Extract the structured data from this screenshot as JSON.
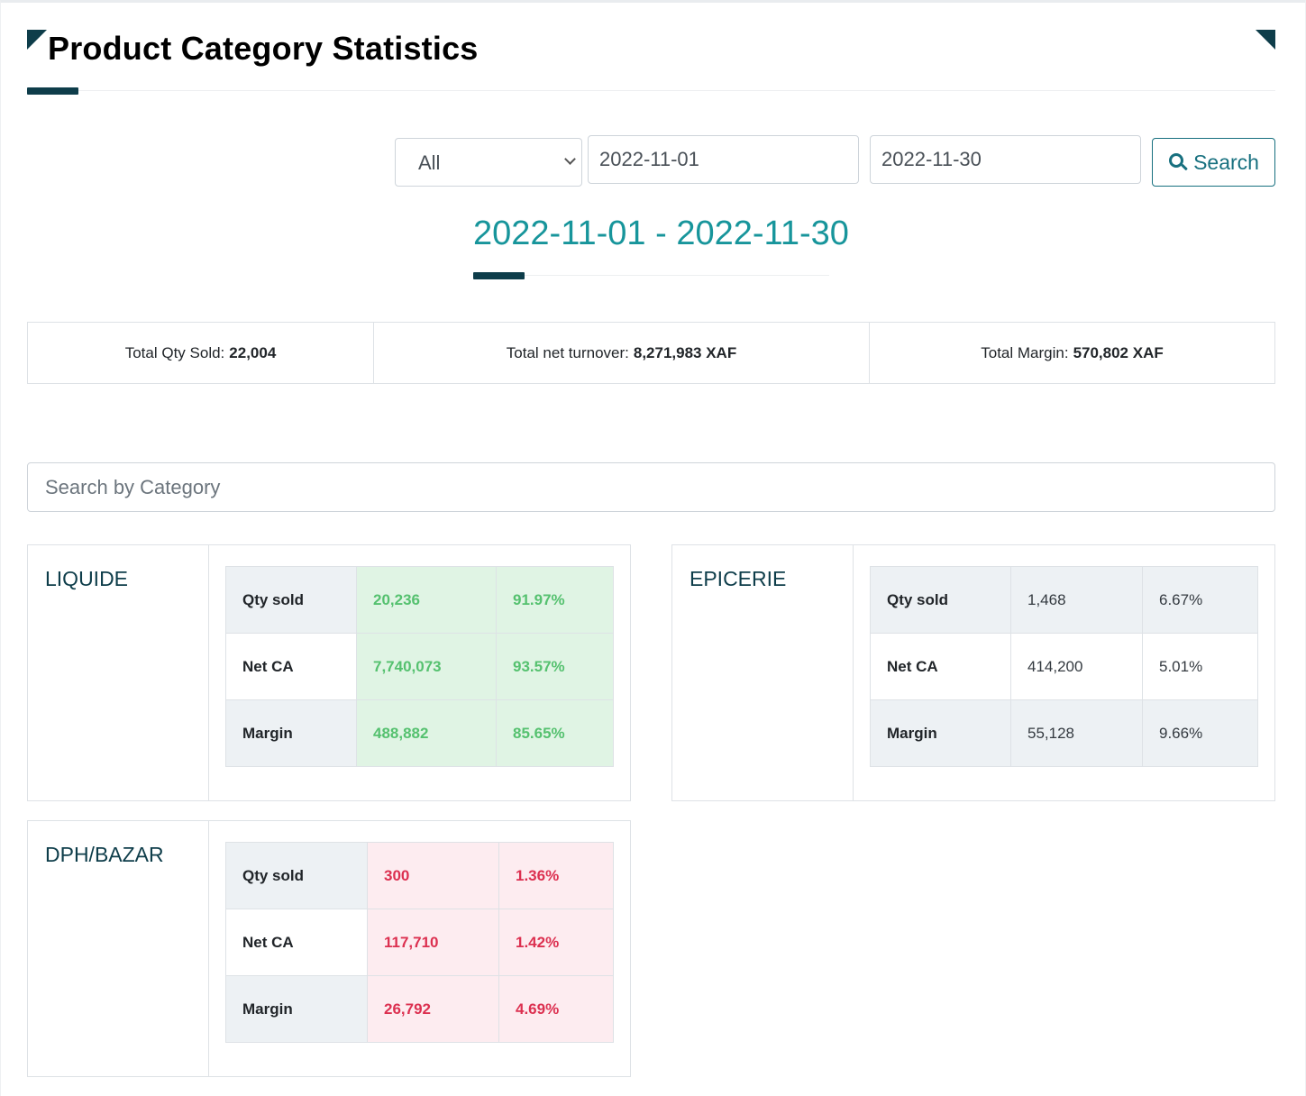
{
  "header": {
    "title": "Product Category Statistics"
  },
  "filters": {
    "category_select": "All",
    "start_date": "2022-11-01",
    "end_date": "2022-11-30",
    "search_label": "Search"
  },
  "range": {
    "start": "2022-11-01",
    "separator": " - ",
    "end": "2022-11-30"
  },
  "totals": {
    "qty_label": "Total Qty Sold:",
    "qty_value": "22,004",
    "turnover_label": "Total net turnover:",
    "turnover_value": "8,271,983 XAF",
    "margin_label": "Total Margin:",
    "margin_value": "570,802 XAF"
  },
  "category_search": {
    "placeholder": "Search by Category"
  },
  "categories": [
    {
      "name": "LIQUIDE",
      "rows": [
        {
          "label": "Qty sold",
          "value": "20,236",
          "percent": "91.97%"
        },
        {
          "label": "Net CA",
          "value": "7,740,073",
          "percent": "93.57%"
        },
        {
          "label": "Margin",
          "value": "488,882",
          "percent": "85.65%"
        }
      ]
    },
    {
      "name": "EPICERIE",
      "rows": [
        {
          "label": "Qty sold",
          "value": "1,468",
          "percent": "6.67%"
        },
        {
          "label": "Net CA",
          "value": "414,200",
          "percent": "5.01%"
        },
        {
          "label": "Margin",
          "value": "55,128",
          "percent": "9.66%"
        }
      ]
    },
    {
      "name": "DPH/BAZAR",
      "rows": [
        {
          "label": "Qty sold",
          "value": "300",
          "percent": "1.36%"
        },
        {
          "label": "Net CA",
          "value": "117,710",
          "percent": "1.42%"
        },
        {
          "label": "Margin",
          "value": "26,792",
          "percent": "4.69%"
        }
      ]
    }
  ],
  "colors": {
    "accent_dark": "#0e3d4a",
    "teal": "#17959b",
    "button_teal": "#17707f",
    "success_text": "#55c16f",
    "success_bg": "#e0f4e4",
    "danger_text": "#dc3050",
    "danger_bg": "#fdecf0"
  },
  "icons": {
    "search_button": "search-icon",
    "select_arrow": "chevron-down-icon"
  }
}
